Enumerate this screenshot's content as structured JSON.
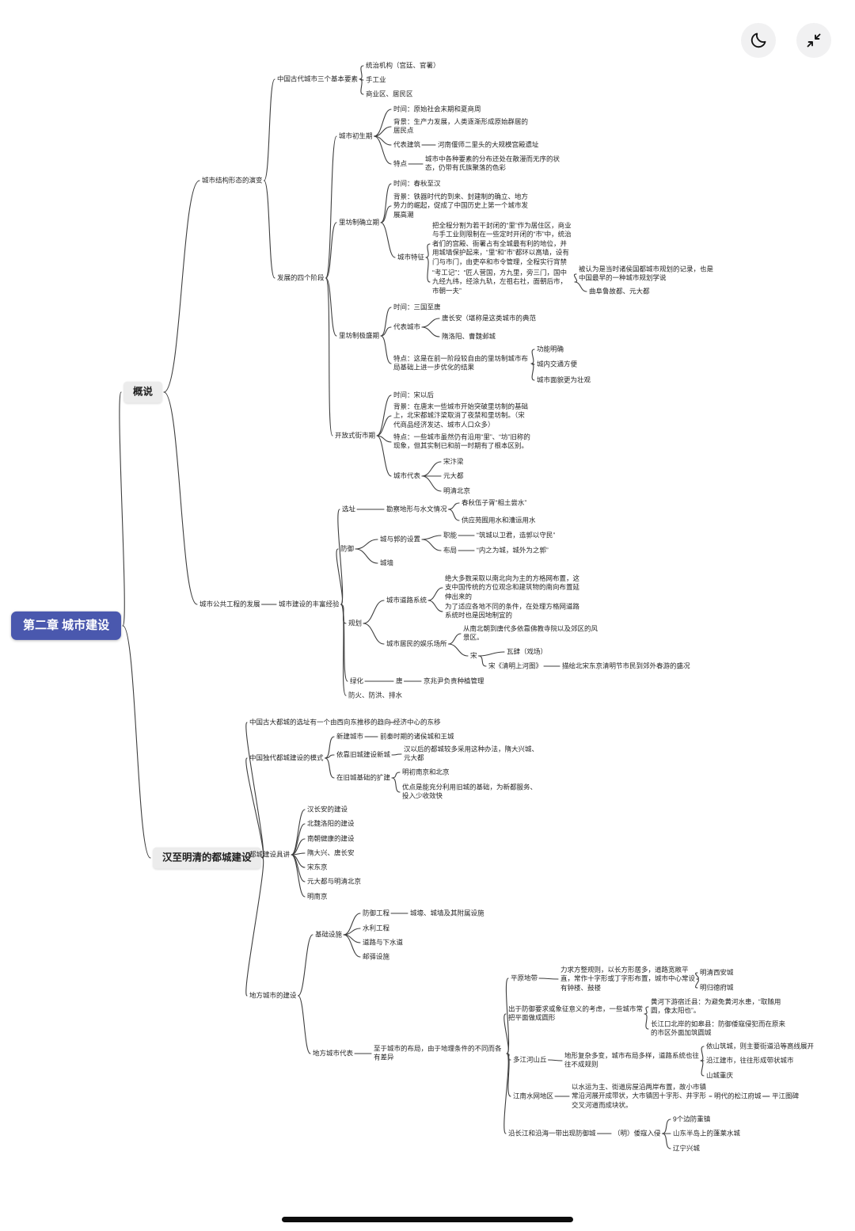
{
  "toolbar": {
    "icons": [
      {
        "name": "dark-mode-icon",
        "glyph": "moon"
      },
      {
        "name": "collapse-icon",
        "glyph": "inward-diagonal-arrows"
      }
    ]
  },
  "theme": {
    "root_bg": "#4a58ae",
    "root_text": "#ffffff",
    "branch_bg": "#ececec",
    "line_color": "#3e3e3e"
  },
  "nodes": {
    "root": "第二章 城市建设",
    "overview": "概说",
    "han_ming": "汉至明清的都城建设",
    "structure_evolution": "城市结构形态的演变",
    "three_elements": "中国古代城市三个基本要素",
    "elem_ruling": "统治机构（宫廷、官署）",
    "elem_handicraft": "手工业",
    "elem_commercial": "商业区、居民区",
    "four_stages": "发展的四个阶段",
    "stage_nascent": "城市初生期",
    "nascent_time": "时间：原始社会末期和夏商周",
    "nascent_bg": "背景：生产力发展，人类逐渐形成原始群居的居民点",
    "nascent_rep": "代表建筑",
    "nascent_rep_detail": "河南偃师二里头的大规模宫殿遗址",
    "nascent_feat": "特点",
    "nascent_feat_detail": "城市中各种要素的分布还处在散漫而无序的状态，仍带有氏族聚落的色彩",
    "stage_lifang_est": "里坊制确立期",
    "est_time": "时间：春秋至汉",
    "est_bg": "背景：铁器时代的到来、封建制的确立、地方势力的崛起，促成了中国历史上第一个城市发展高潮",
    "est_feature": "城市特征",
    "est_feature_detail": "把全程分割为若干封闭的“里”作为居住区，商业与手工业则限制在一些定时开闭的“市”中，统治者们的宫殿、衙署占有全城最有利的地位，并用城墙保护起来，“里”和“市”都环以高墙，设有门与市门，由吏卒和市令管理，全程实行宵禁",
    "kaogongji": "“考工记”：“匠人营国，方九里，旁三门，国中九经九纬，经涂九轨，左祖右社，面朝后市，市朝一夫”",
    "kaogongji_note": "被认为是当时诸侯国都城市规划的记录，也是中国最早的一种城市规划学说",
    "kaogongji_cases": "曲阜鲁故都、元大都",
    "stage_lifang_peak": "里坊制极盛期",
    "peak_time": "时间：三国至唐",
    "peak_rep": "代表城市",
    "peak_rep_changan": "唐长安（堪称是这类城市的典范",
    "peak_rep_luoyang": "隋洛阳、曹魏邺城",
    "peak_feat": "特点：这是在前一阶段较自由的里坊制城市布局基础上进一步优化的结果",
    "peak_f1": "功能明确",
    "peak_f2": "城内交通方便",
    "peak_f3": "城市面貌更为壮观",
    "stage_open": "开放式街市期",
    "open_time": "时间：宋以后",
    "open_bg": "背景：在唐末一些城市开始突破里坊制的基础上，北宋都城汴梁取消了夜禁和里坊制。（宋代商品经济发达、城市人口众多）",
    "open_feat": "特点：一些城市虽然仍有沿用“里”、“坊”旧称的现象，但其实制已和前一时期有了根本区别。",
    "open_rep": "城市代表",
    "open_rep1": "宋汴梁",
    "open_rep2": "元大都",
    "open_rep3": "明清北京",
    "public_works": "城市公共工程的发展",
    "rich_exp": "城市建设的丰富经验",
    "site_sel": "选址",
    "survey": "勘察地形与水文情况",
    "survey1": "春秋伍子胥“相土尝水”",
    "survey2": "供应苑囿用水和漕运用水",
    "defense": "防御",
    "cheng_guo": "城与郭的设置",
    "cg_role": "职能",
    "cg_role_d": "“筑城以卫君，造郭以守民”",
    "cg_layout": "布局",
    "cg_layout_d": "“内之为城，城外为之郭”",
    "city_wall": "城墙",
    "planning": "规划",
    "road_sys": "城市道路系统",
    "road_sys_d1": "绝大多数采取以南北向为主的方格网布置，这支中国传统的方位观念和建筑物的南向布置延伸出来的",
    "road_sys_d2": "为了适应各地不同的条件，在处理方格网道路系统时也是因地制宜的",
    "entertainment": "城市居民的娱乐场所",
    "ent_early": "从南北朝到唐代多依靠佛教寺院以及郊区的风景区。",
    "ent_song": "宋",
    "ent_washi": "瓦肆（戏场）",
    "ent_qingming": "宋《清明上河图》",
    "ent_qingming_d": "描绘北宋东京清明节市民到郊外春游的盛况",
    "greening": "绿化",
    "green_tang": "唐",
    "green_tang_d": "京兆尹负责种植管理",
    "fire_flood": "防火、防洪、排水",
    "site_shift": "中国古大都城的选址有一个由西向东推移的趋向",
    "econ_shift": "经济中心的东移",
    "capital_modes": "中国独代都城建设的模式",
    "mode_new": "新建城市",
    "mode_new_d": "前秦时期的诸侯城和王城",
    "mode_rely": "依靠旧城建设新城",
    "mode_rely_d": "汉以后的都城较多采用这种办法，隋大兴城、元大都",
    "mode_expand": "在旧城基础的扩建",
    "mode_expand_d1": "明初南京和北京",
    "mode_expand_d2": "优点是能充分利用旧城的基础，为新都服务、投入少收效快",
    "capital_details": "都城建设具讲",
    "cap1": "汉长安的建设",
    "cap2": "北魏洛阳的建设",
    "cap3": "南朝健康的建设",
    "cap4": "隋大兴、唐长安",
    "cap5": "宋东京",
    "cap6": "元大都与明清北京",
    "cap7": "明南京",
    "local_city": "地方城市的建设",
    "infrastructure": "基础设施",
    "infra_def": "防御工程",
    "infra_def_d": "城壕、城墙及其附属设施",
    "infra_hydro": "水利工程",
    "infra_road": "道路与下水道",
    "infra_post": "邮驿设施",
    "local_rep": "地方城市代表",
    "local_note": "至于城市的布局，由于地理条件的不同而各有差异",
    "plains": "平原地带",
    "plains_d": "力求方整规则，以长方形居多，道路宽敞平直，常作十字形或丁字形布置，城市中心常设有钟楼、鼓楼",
    "plains_xian": "明清西安城",
    "plains_guide": "明归德府城",
    "circle_city": "出于防御要求或象征意义的考虑，一些城市常把平面做成圆形",
    "circle_suqian": "黄河下游宿迁县：为避免黄河水患，“取随用圆，像太阳也”。",
    "circle_rugao": "长江口北岸的如皋县：防御倭寇侵犯而在原来的市区外面加筑圆城",
    "hills": "多江河山丘",
    "hills_d": "地形复杂多变，城市布局多样，道路系统也往往不成规则",
    "hills_1": "依山筑城，则主要街道沿等高线展开",
    "hills_2": "沿江建市，往往形成带状城市",
    "hills_3": "山城重庆",
    "water_net": "江南水网地区",
    "water_net_d": "以水运为主、街道房屋沿两岸布置，故小市镇常沿河展开成带状，大市镇因十字形、井字形交叉河道而成块状。",
    "water_songjiang": "明代的松江府城",
    "water_pingjiang": "平江图碑",
    "coastal": "沿长江和沿海一带出现防御城",
    "coastal_wokou": "（明）倭寇入侵",
    "coastal_1": "9个边防重镇",
    "coastal_2": "山东半岛上的蓬莱水城",
    "coastal_3": "辽宁兴城"
  }
}
